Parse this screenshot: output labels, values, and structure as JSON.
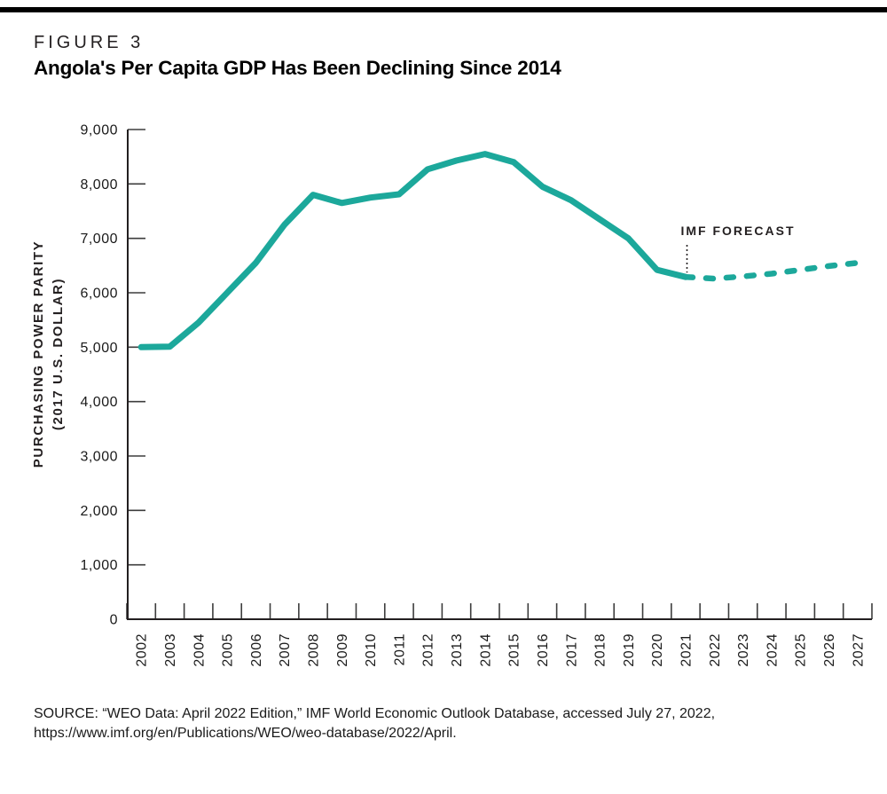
{
  "figure_label": "FIGURE 3",
  "title": "Angola's Per Capita GDP Has Been Declining Since 2014",
  "source": {
    "line1": "SOURCE: “WEO Data: April 2022 Edition,” IMF World Economic Outlook Database, accessed July 27, 2022,",
    "line2": "https://www.imf.org/en/Publications/WEO/weo-database/2022/April."
  },
  "colors": {
    "line": "#1CA89B",
    "axis": "#231f20",
    "tick": "#3d3d3d",
    "text": "#1a1a1a",
    "top_bar": "#000000"
  },
  "chart_data": {
    "type": "line",
    "title": "Angola's Per Capita GDP Has Been Declining Since 2014",
    "ylabel_line1": "PURCHASING POWER PARITY",
    "ylabel_line2": "(2017 U.S. DOLLAR)",
    "xlabel": "",
    "ylim": [
      0,
      9000
    ],
    "ytick_step": 1000,
    "ytick_labels": [
      "0",
      "1,000",
      "2,000",
      "3,000",
      "4,000",
      "5,000",
      "6,000",
      "7,000",
      "8,000",
      "9,000"
    ],
    "categories": [
      "2002",
      "2003",
      "2004",
      "2005",
      "2006",
      "2007",
      "2008",
      "2009",
      "2010",
      "2011",
      "2012",
      "2013",
      "2014",
      "2015",
      "2016",
      "2017",
      "2018",
      "2019",
      "2020",
      "2021",
      "2022",
      "2023",
      "2024",
      "2025",
      "2026",
      "2027"
    ],
    "grid": false,
    "legend": "none",
    "series": [
      {
        "name": "historical",
        "style": "solid",
        "x": [
          "2002",
          "2003",
          "2004",
          "2005",
          "2006",
          "2007",
          "2008",
          "2009",
          "2010",
          "2011",
          "2012",
          "2013",
          "2014",
          "2015",
          "2016",
          "2017",
          "2018",
          "2019",
          "2020",
          "2021"
        ],
        "values": [
          5000,
          5010,
          5450,
          6000,
          6550,
          7250,
          7800,
          7650,
          7750,
          7810,
          8270,
          8430,
          8550,
          8400,
          7950,
          7700,
          7350,
          7000,
          6420,
          6290
        ]
      },
      {
        "name": "imf-forecast",
        "style": "dashed",
        "x": [
          "2021",
          "2022",
          "2023",
          "2024",
          "2025",
          "2026",
          "2027"
        ],
        "values": [
          6290,
          6260,
          6300,
          6350,
          6420,
          6490,
          6550
        ]
      }
    ],
    "annotation": {
      "text": "IMF FORECAST",
      "target_year": "2021"
    }
  }
}
